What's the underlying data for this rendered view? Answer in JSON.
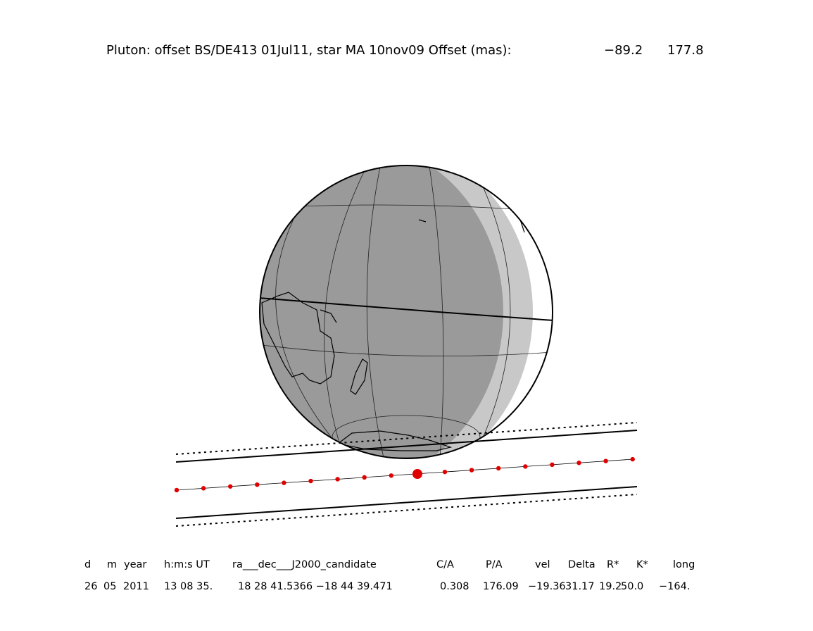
{
  "title": {
    "text": "Pluton: offset BS/DE413 01Jul11, star MA 10nov09  Offset (mas):",
    "offset_x": "−89.2",
    "offset_y": "177.8"
  },
  "table": {
    "header": [
      "d",
      "m",
      "year",
      "h:m:s UT",
      "ra___dec___J2000_candidate",
      "C/A",
      "P/A",
      "vel",
      "Delta",
      "R*",
      "K*",
      "long"
    ],
    "values": [
      "26",
      "05",
      "2011",
      "13 08 35.",
      "18 28 41.5366 −18 44 39.471",
      "0.308",
      "176.09",
      "−19.36",
      "31.17",
      "19.2",
      "50.0",
      "−164."
    ]
  }
}
